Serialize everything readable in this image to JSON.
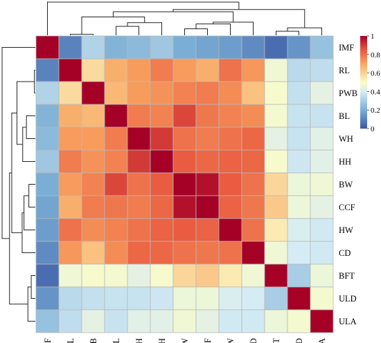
{
  "chart_data": {
    "type": "heatmap",
    "variables": [
      "IMF",
      "RL",
      "PWB",
      "BL",
      "WH",
      "HH",
      "BW",
      "CCF",
      "HW",
      "CD",
      "BFT",
      "ULD",
      "ULA"
    ],
    "row_labels": [
      "IMF",
      "RL",
      "PWB",
      "BL",
      "WH",
      "HH",
      "BW",
      "CCF",
      "HW",
      "CD",
      "BFT",
      "ULD",
      "ULA"
    ],
    "col_labels": [
      "IMF",
      "RL",
      "PWB",
      "BL",
      "WH",
      "HH",
      "BW",
      "CCF",
      "HW",
      "CD",
      "BFT",
      "ULD",
      "ULA"
    ],
    "matrix": [
      [
        1.0,
        0.1,
        0.32,
        0.22,
        0.24,
        0.28,
        0.2,
        0.18,
        0.16,
        0.12,
        0.05,
        0.14,
        0.26
      ],
      [
        0.1,
        1.0,
        0.58,
        0.68,
        0.72,
        0.78,
        0.72,
        0.68,
        0.8,
        0.73,
        0.47,
        0.34,
        0.35
      ],
      [
        0.32,
        0.58,
        1.0,
        0.66,
        0.72,
        0.74,
        0.77,
        0.78,
        0.75,
        0.64,
        0.49,
        0.36,
        0.44
      ],
      [
        0.22,
        0.68,
        0.66,
        1.0,
        0.78,
        0.77,
        0.88,
        0.79,
        0.77,
        0.75,
        0.48,
        0.37,
        0.37
      ],
      [
        0.24,
        0.72,
        0.72,
        0.78,
        1.0,
        0.9,
        0.8,
        0.78,
        0.8,
        0.82,
        0.44,
        0.37,
        0.43
      ],
      [
        0.28,
        0.78,
        0.74,
        0.77,
        0.9,
        1.0,
        0.84,
        0.82,
        0.83,
        0.82,
        0.49,
        0.38,
        0.43
      ],
      [
        0.2,
        0.72,
        0.77,
        0.88,
        0.8,
        0.84,
        1.0,
        0.97,
        0.84,
        0.8,
        0.59,
        0.46,
        0.47
      ],
      [
        0.18,
        0.68,
        0.78,
        0.79,
        0.78,
        0.82,
        0.97,
        1.0,
        0.83,
        0.79,
        0.62,
        0.46,
        0.44
      ],
      [
        0.16,
        0.8,
        0.75,
        0.77,
        0.8,
        0.83,
        0.84,
        0.83,
        1.0,
        0.8,
        0.54,
        0.41,
        0.39
      ],
      [
        0.12,
        0.73,
        0.64,
        0.75,
        0.82,
        0.82,
        0.8,
        0.79,
        0.8,
        1.0,
        0.47,
        0.4,
        0.39
      ],
      [
        0.05,
        0.47,
        0.49,
        0.48,
        0.44,
        0.49,
        0.59,
        0.62,
        0.54,
        0.47,
        1.0,
        0.3,
        0.46
      ],
      [
        0.14,
        0.34,
        0.36,
        0.37,
        0.37,
        0.38,
        0.46,
        0.46,
        0.41,
        0.4,
        0.3,
        1.0,
        0.48
      ],
      [
        0.26,
        0.35,
        0.44,
        0.37,
        0.43,
        0.43,
        0.47,
        0.44,
        0.39,
        0.39,
        0.46,
        0.48,
        1.0
      ]
    ],
    "color_scale": {
      "min": 0,
      "max": 1,
      "stops": [
        [
          0.0,
          "#3a57a6"
        ],
        [
          0.2,
          "#7aaed5"
        ],
        [
          0.4,
          "#d6ecf5"
        ],
        [
          0.5,
          "#fbfcc7"
        ],
        [
          0.7,
          "#f9a762"
        ],
        [
          0.85,
          "#e9573f"
        ],
        [
          1.0,
          "#a50026"
        ]
      ]
    },
    "legend": {
      "position": "right",
      "ticks": [
        "1",
        "0.8",
        "0.6",
        "0.4",
        "0.2",
        "0"
      ]
    },
    "dendrogram_row": true,
    "dendrogram_col": true,
    "cell_border_color": "#b8b8b8"
  }
}
